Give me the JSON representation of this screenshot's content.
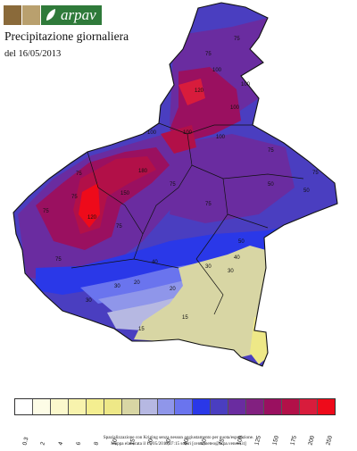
{
  "header": {
    "brand": "arpav",
    "title": "Precipitazione giornaliera",
    "date": "del 16/05/2013"
  },
  "colors": {
    "region_fill": "#4a3ec0",
    "heavy_fill": "#9a1060",
    "extreme_fill": "#d81c3c",
    "plain_fill": "#d8d6a4",
    "light_fill": "#b6b8e2",
    "blue_band": "#2a38e8",
    "border": "#111111"
  },
  "legend": {
    "labels": [
      "0.3",
      "2",
      "4",
      "6",
      "8",
      "10",
      "15",
      "20",
      "30",
      "40",
      "50",
      "75",
      "100",
      "125",
      "150",
      "175",
      "200",
      "250"
    ],
    "colors": [
      "#ffffff",
      "#fdfce6",
      "#fbf8cc",
      "#f8f3ad",
      "#f4ee90",
      "#eee887",
      "#d8d6a4",
      "#b6b8e2",
      "#8f96ea",
      "#6a74ee",
      "#2a38e8",
      "#4a3ec0",
      "#6a2ca0",
      "#822080",
      "#9a1060",
      "#b21048",
      "#d81c3c",
      "#ee0a1a"
    ]
  },
  "contour_labels": [
    "75",
    "75",
    "100",
    "120",
    "100",
    "100",
    "100",
    "100",
    "75",
    "180",
    "150",
    "120",
    "75",
    "75",
    "75",
    "75",
    "75",
    "50",
    "50",
    "40",
    "30",
    "30",
    "20",
    "20",
    "15",
    "15",
    "30",
    "50",
    "40",
    "30",
    "75",
    "75",
    "100",
    "75"
  ],
  "footer": {
    "line1": "Spazializzazione con Kriging senza nessun aggiustamento per quota/esposizione.",
    "line2": "Mappa elaborata il 17/05/2013 07:15 solari [centr.meteo@arpa.veneto.it]"
  }
}
